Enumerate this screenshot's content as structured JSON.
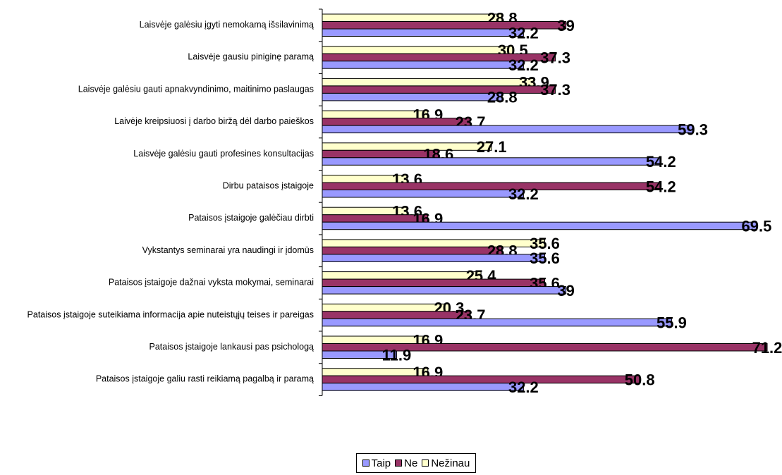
{
  "colors": {
    "taip": "#9999ff",
    "ne": "#993366",
    "nezinau": "#ffffcc"
  },
  "chart_data": {
    "type": "bar",
    "orientation": "horizontal",
    "xlim": [
      0,
      72
    ],
    "legend_position": "bottom",
    "grid": false,
    "categories": [
      "Laisvėje galėsiu įgyti nemokamą išsilavinimą",
      "Laisvėje gausiu piniginę paramą",
      "Laisvėje galėsiu gauti apnakvyndinimo, maitinimo paslaugas",
      "Laivėje kreipsiuosi į darbo biržą dėl darbo paieškos",
      "Laisvėje galėsiu gauti profesines konsultacijas",
      "Dirbu pataisos įstaigoje",
      "Pataisos įstaigoje galėčiau dirbti",
      "Vykstantys seminarai yra naudingi ir įdomūs",
      "Pataisos įstaigoje dažnai vyksta mokymai, seminarai",
      "Pataisos įstaigoje suteikiama informacija apie nuteistųjų teises ir pareigas",
      "Pataisos įstaigoje lankausi pas psichologą",
      "Pataisos įstaigoje galiu rasti reikiamą pagalbą ir paramą"
    ],
    "series": [
      {
        "name": "Nežinau",
        "values": [
          "28.8",
          "30.5",
          "33.9",
          "16.9",
          "27.1",
          "13.6",
          "13.6",
          "35.6",
          "25.4",
          "20.3",
          "16.9",
          "16.9"
        ]
      },
      {
        "name": "Ne",
        "values": [
          "39",
          "37.3",
          "37.3",
          "23.7",
          "18.6",
          "54.2",
          "16.9",
          "28.8",
          "35.6",
          "23.7",
          "71.2",
          "50.8"
        ]
      },
      {
        "name": "Taip",
        "values": [
          "32.2",
          "32.2",
          "28.8",
          "59.3",
          "54.2",
          "32.2",
          "69.5",
          "35.6",
          "39",
          "55.9",
          "11.9",
          "32.2"
        ]
      }
    ]
  },
  "legend": {
    "taip": "Taip",
    "ne": "Ne",
    "nezinau": "Nežinau"
  }
}
